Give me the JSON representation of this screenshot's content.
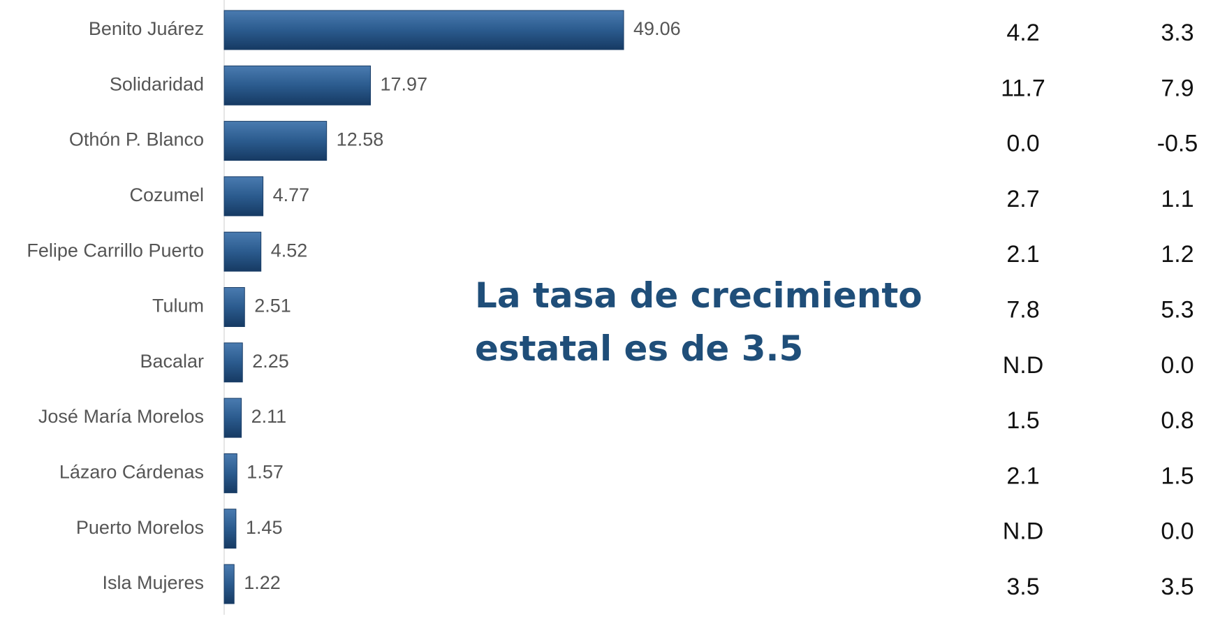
{
  "chart_data": {
    "type": "bar",
    "orientation": "horizontal",
    "categories": [
      "Benito Juárez",
      "Solidaridad",
      "Othón P. Blanco",
      "Cozumel",
      "Felipe Carrillo Puerto",
      "Tulum",
      "Bacalar",
      "José María Morelos",
      "Lázaro Cárdenas",
      "Puerto Morelos",
      "Isla Mujeres"
    ],
    "values": [
      49.06,
      17.97,
      12.58,
      4.77,
      4.52,
      2.51,
      2.25,
      2.11,
      1.57,
      1.45,
      1.22
    ],
    "color": "#2b5b8e",
    "xlim": [
      0,
      50
    ],
    "annotation": [
      "La tasa de crecimiento",
      "estatal es de 3.5"
    ],
    "columns": [
      [
        "4.2",
        "11.7",
        "0.0",
        "2.7",
        "2.1",
        "7.8",
        "N.D",
        "1.5",
        "2.1",
        "N.D",
        "3.5"
      ],
      [
        "3.3",
        "7.9",
        "-0.5",
        "1.1",
        "1.2",
        "5.3",
        "0.0",
        "0.8",
        "1.5",
        "0.0",
        "3.5"
      ]
    ]
  }
}
